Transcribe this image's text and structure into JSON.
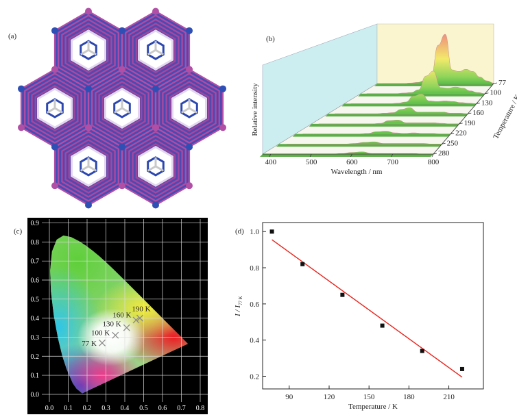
{
  "figure": {
    "panel_a": "(a)"
  },
  "chart_data": [
    {
      "type": "waterfall3d",
      "title": "(b)",
      "xlabel": "Wavelength / nm",
      "ylabel": "Relative intensity",
      "zlabel": "Temperature / K",
      "xlim": [
        380,
        800
      ],
      "xticks": [
        400,
        500,
        600,
        700,
        800
      ],
      "x": [
        400,
        425,
        450,
        475,
        500,
        525,
        550,
        575,
        600,
        625,
        650,
        675,
        700,
        725,
        750,
        775,
        800
      ],
      "series": [
        {
          "name": "77",
          "values": [
            0,
            0,
            0,
            0,
            0.01,
            0.02,
            0.05,
            0.15,
            0.7,
            0.9,
            0.25,
            0.22,
            0.26,
            0.22,
            0.12,
            0.05,
            0.01
          ]
        },
        {
          "name": "100",
          "values": [
            0,
            0,
            0,
            0,
            0,
            0.01,
            0.02,
            0.07,
            0.32,
            0.41,
            0.11,
            0.1,
            0.12,
            0.1,
            0.05,
            0.02,
            0
          ]
        },
        {
          "name": "130",
          "values": [
            0,
            0,
            0,
            0,
            0,
            0,
            0.01,
            0.03,
            0.14,
            0.18,
            0.05,
            0.04,
            0.05,
            0.04,
            0.02,
            0.01,
            0
          ]
        },
        {
          "name": "160",
          "values": [
            0,
            0,
            0,
            0,
            0,
            0,
            0.01,
            0.02,
            0.08,
            0.11,
            0.03,
            0.03,
            0.03,
            0.03,
            0.01,
            0.01,
            0
          ]
        },
        {
          "name": "190",
          "values": [
            0,
            0,
            0,
            0,
            0,
            0,
            0,
            0.01,
            0.06,
            0.07,
            0.02,
            0.02,
            0.02,
            0.02,
            0.01,
            0,
            0
          ]
        },
        {
          "name": "220",
          "values": [
            0,
            0,
            0,
            0,
            0,
            0,
            0,
            0.01,
            0.04,
            0.05,
            0.02,
            0.01,
            0.02,
            0.01,
            0.01,
            0,
            0
          ]
        },
        {
          "name": "250",
          "values": [
            0,
            0,
            0,
            0,
            0,
            0,
            0,
            0.01,
            0.03,
            0.04,
            0.01,
            0.01,
            0.01,
            0.01,
            0.01,
            0,
            0
          ]
        },
        {
          "name": "280",
          "values": [
            0,
            0,
            0,
            0,
            0,
            0,
            0,
            0.01,
            0.03,
            0.04,
            0.01,
            0.01,
            0.01,
            0.01,
            0.01,
            0,
            0
          ]
        }
      ]
    },
    {
      "type": "cie",
      "title": "(c)",
      "xlim": [
        -0.04,
        0.84
      ],
      "ylim": [
        -0.04,
        0.92
      ],
      "xticks": [
        {
          "value": 0,
          "label": "0.0"
        },
        0.1,
        0.2,
        0.3,
        0.4,
        0.5,
        0.6,
        0.7,
        0.8
      ],
      "yticks": [
        {
          "value": 0,
          "label": "0.0"
        },
        0.1,
        0.2,
        0.3,
        0.4,
        0.5,
        0.6,
        0.7,
        0.8,
        0.9
      ],
      "marker_color": "#8a8a8a",
      "points": [
        {
          "label": "77 K",
          "x": 0.28,
          "y": 0.27
        },
        {
          "label": "100 K",
          "x": 0.35,
          "y": 0.31
        },
        {
          "label": "130 K",
          "x": 0.41,
          "y": 0.35
        },
        {
          "label": "160 K",
          "x": 0.46,
          "y": 0.39
        },
        {
          "label": "190 K",
          "x": 0.48,
          "y": 0.4
        }
      ]
    },
    {
      "type": "scatter",
      "title": "(d)",
      "xlabel": "Temperature / K",
      "ylabel": "I / I",
      "ylabel_sub": "77 K",
      "xlim": [
        70,
        236
      ],
      "ylim": [
        0.13,
        1.05
      ],
      "xticks": [
        90,
        120,
        150,
        180,
        210
      ],
      "yticks": [
        0.2,
        0.4,
        0.6,
        0.8,
        {
          "value": 1,
          "label": "1.0"
        }
      ],
      "x": [
        77,
        100,
        130,
        160,
        190,
        220
      ],
      "values": [
        1,
        0.82,
        0.65,
        0.48,
        0.34,
        0.24
      ],
      "color": "#111111",
      "fit": {
        "x": [
          77,
          220
        ],
        "values": [
          0.955,
          0.195
        ],
        "color": "#e8231c"
      }
    }
  ]
}
